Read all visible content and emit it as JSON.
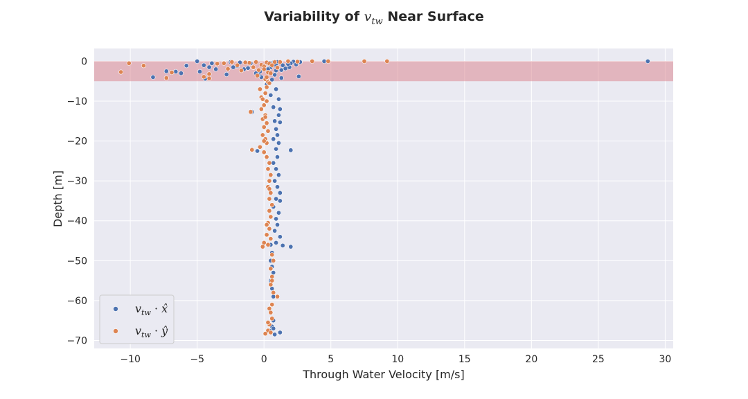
{
  "chart_data": {
    "type": "scatter",
    "title_prefix": "Variability of ",
    "title_var": "v",
    "title_sub": "tw",
    "title_suffix": " Near Surface",
    "xlabel": "Through Water Velocity [m/s]",
    "ylabel": "Depth [m]",
    "xlim": [
      -12.7,
      30.6
    ],
    "ylim": [
      -72,
      3.2
    ],
    "xticks": [
      -10,
      -5,
      0,
      5,
      10,
      15,
      20,
      25,
      30
    ],
    "yticks": [
      0,
      -10,
      -20,
      -30,
      -40,
      -50,
      -60,
      -70
    ],
    "xtick_labels": [
      "−10",
      "−5",
      "0",
      "5",
      "10",
      "15",
      "20",
      "25",
      "30"
    ],
    "ytick_labels": [
      "0",
      "−10",
      "−20",
      "−30",
      "−40",
      "−50",
      "−60",
      "−70"
    ],
    "grid": true,
    "legend_position": "lower-left",
    "highlight_band": {
      "y_from": -5,
      "y_to": 0,
      "color": "#d9808a"
    },
    "colors": {
      "background": "#eaeaf2",
      "grid": "#ffffff",
      "x_series": "#4c72b0",
      "y_series": "#dd8452"
    },
    "series": [
      {
        "name_v": "v",
        "name_sub": "tw",
        "name_dot": " · ",
        "name_comp": "x̂",
        "color": "#4c72b0",
        "points": [
          [
            28.7,
            0.0
          ],
          [
            4.5,
            0.0
          ],
          [
            2.7,
            -0.2
          ],
          [
            2.2,
            -0.1
          ],
          [
            2.4,
            -0.8
          ],
          [
            1.9,
            -1.5
          ],
          [
            2.6,
            -3.8
          ],
          [
            2.0,
            -0.5
          ],
          [
            1.3,
            -2.2
          ],
          [
            1.6,
            -1.8
          ],
          [
            -5.0,
            0.0
          ],
          [
            -4.5,
            -1.0
          ],
          [
            -4.1,
            -1.5
          ],
          [
            -4.8,
            -2.6
          ],
          [
            -3.0,
            -0.4
          ],
          [
            -2.5,
            -0.2
          ],
          [
            -2.0,
            -1.2
          ],
          [
            -1.5,
            -2.0
          ],
          [
            -1.0,
            -0.5
          ],
          [
            -0.6,
            -3.0
          ],
          [
            -6.2,
            -3.0
          ],
          [
            -6.6,
            -2.6
          ],
          [
            -7.3,
            -2.5
          ],
          [
            -8.3,
            -4.0
          ],
          [
            -5.8,
            -1.1
          ],
          [
            -3.6,
            -2.0
          ],
          [
            -1.8,
            -0.3
          ],
          [
            -1.2,
            -1.7
          ],
          [
            -0.3,
            -2.6
          ],
          [
            0.5,
            -1.5
          ],
          [
            0.9,
            -2.3
          ],
          [
            0.8,
            -3.4
          ],
          [
            -0.2,
            -4.0
          ],
          [
            0.4,
            -0.8
          ],
          [
            1.0,
            -0.2
          ],
          [
            -2.8,
            -3.3
          ],
          [
            -2.3,
            -1.5
          ],
          [
            -3.9,
            -0.5
          ],
          [
            -4.4,
            -4.4
          ],
          [
            0.2,
            -5.8
          ],
          [
            0.9,
            -7.0
          ],
          [
            0.5,
            -8.5
          ],
          [
            1.1,
            -9.5
          ],
          [
            0.7,
            -11.5
          ],
          [
            1.2,
            -12.0
          ],
          [
            -0.9,
            -12.7
          ],
          [
            1.1,
            -13.5
          ],
          [
            0.8,
            -15.0
          ],
          [
            1.2,
            -15.3
          ],
          [
            0.9,
            -17.0
          ],
          [
            1.0,
            -18.5
          ],
          [
            0.7,
            -19.5
          ],
          [
            1.1,
            -20.5
          ],
          [
            0.9,
            -22.0
          ],
          [
            2.0,
            -22.3
          ],
          [
            -0.5,
            -22.5
          ],
          [
            1.0,
            -24.0
          ],
          [
            0.7,
            -25.5
          ],
          [
            0.9,
            -27.0
          ],
          [
            1.1,
            -28.5
          ],
          [
            0.8,
            -30.0
          ],
          [
            1.0,
            -31.5
          ],
          [
            1.2,
            -33.0
          ],
          [
            0.9,
            -34.5
          ],
          [
            1.2,
            -35.0
          ],
          [
            0.7,
            -36.5
          ],
          [
            1.1,
            -38.0
          ],
          [
            0.9,
            -39.5
          ],
          [
            1.0,
            -41.0
          ],
          [
            0.8,
            -42.5
          ],
          [
            1.2,
            -44.0
          ],
          [
            0.9,
            -45.5
          ],
          [
            1.4,
            -46.2
          ],
          [
            2.0,
            -46.5
          ],
          [
            0.5,
            -46.0
          ],
          [
            0.6,
            -48.0
          ],
          [
            0.5,
            -50.0
          ],
          [
            0.6,
            -51.5
          ],
          [
            0.7,
            -53.0
          ],
          [
            0.5,
            -55.0
          ],
          [
            0.6,
            -57.0
          ],
          [
            0.7,
            -59.0
          ],
          [
            0.6,
            -61.0
          ],
          [
            0.5,
            -63.0
          ],
          [
            0.7,
            -65.0
          ],
          [
            0.6,
            -66.5
          ],
          [
            1.2,
            -68.0
          ],
          [
            0.8,
            -68.5
          ],
          [
            0.4,
            -67.5
          ],
          [
            0.7,
            -67.0
          ],
          [
            0.9,
            -1.0
          ],
          [
            0.3,
            -2.0
          ],
          [
            1.4,
            -1.0
          ],
          [
            1.8,
            -0.7
          ],
          [
            -0.8,
            -1.6
          ],
          [
            0.6,
            -4.6
          ],
          [
            1.3,
            -4.2
          ],
          [
            -0.4,
            -3.5
          ],
          [
            0.4,
            -0.4
          ],
          [
            0.7,
            -0.3
          ]
        ]
      },
      {
        "name_v": "v",
        "name_sub": "tw",
        "name_dot": " · ",
        "name_comp": "ŷ",
        "color": "#dd8452",
        "points": [
          [
            9.2,
            0.0
          ],
          [
            7.5,
            0.0
          ],
          [
            4.8,
            0.0
          ],
          [
            3.6,
            0.0
          ],
          [
            2.5,
            -0.1
          ],
          [
            1.8,
            0.0
          ],
          [
            1.2,
            -0.2
          ],
          [
            -10.1,
            -0.5
          ],
          [
            -10.7,
            -2.7
          ],
          [
            -9.0,
            -1.1
          ],
          [
            -7.3,
            -4.2
          ],
          [
            -6.9,
            -2.8
          ],
          [
            -4.5,
            -3.9
          ],
          [
            -4.1,
            -3.2
          ],
          [
            -4.1,
            -4.3
          ],
          [
            -3.5,
            -0.6
          ],
          [
            -3.0,
            -0.5
          ],
          [
            -2.7,
            -1.9
          ],
          [
            -2.0,
            -1.0
          ],
          [
            -1.7,
            -2.3
          ],
          [
            -1.1,
            -0.4
          ],
          [
            -0.8,
            -1.5
          ],
          [
            -0.6,
            -0.2
          ],
          [
            -0.4,
            -2.2
          ],
          [
            -0.2,
            -0.9
          ],
          [
            0.0,
            -1.3
          ],
          [
            0.2,
            -0.3
          ],
          [
            0.3,
            -2.8
          ],
          [
            0.4,
            -0.6
          ],
          [
            0.6,
            -1.0
          ],
          [
            0.8,
            -0.2
          ],
          [
            1.0,
            -1.6
          ],
          [
            -1.4,
            -0.3
          ],
          [
            -2.4,
            -0.2
          ],
          [
            -0.5,
            -3.6
          ],
          [
            0.1,
            -4.5
          ],
          [
            0.3,
            -5.2
          ],
          [
            0.5,
            -3.0
          ],
          [
            0.2,
            -4.0
          ],
          [
            0.0,
            -2.0
          ],
          [
            -0.3,
            -7.0
          ],
          [
            0.1,
            -8.0
          ],
          [
            -0.2,
            -9.0
          ],
          [
            0.2,
            -10.0
          ],
          [
            0.0,
            -11.0
          ],
          [
            -0.2,
            -12.0
          ],
          [
            -1.0,
            -12.7
          ],
          [
            0.1,
            -13.5
          ],
          [
            -0.1,
            -14.5
          ],
          [
            0.2,
            -15.5
          ],
          [
            0.0,
            -16.5
          ],
          [
            0.3,
            -17.5
          ],
          [
            -0.1,
            -18.5
          ],
          [
            0.1,
            -19.5
          ],
          [
            0.2,
            -20.5
          ],
          [
            -0.3,
            -21.5
          ],
          [
            -0.9,
            -22.2
          ],
          [
            0.0,
            -22.8
          ],
          [
            0.2,
            -24.0
          ],
          [
            0.4,
            -25.5
          ],
          [
            0.3,
            -27.0
          ],
          [
            0.5,
            -28.5
          ],
          [
            0.4,
            -30.0
          ],
          [
            0.3,
            -31.5
          ],
          [
            0.5,
            -33.0
          ],
          [
            0.4,
            -34.5
          ],
          [
            0.6,
            -36.0
          ],
          [
            0.4,
            -37.5
          ],
          [
            0.5,
            -39.0
          ],
          [
            0.3,
            -40.5
          ],
          [
            0.4,
            -42.0
          ],
          [
            0.2,
            -43.5
          ],
          [
            0.5,
            -44.5
          ],
          [
            0.0,
            -45.5
          ],
          [
            -0.1,
            -46.5
          ],
          [
            0.3,
            -46.0
          ],
          [
            0.6,
            -48.5
          ],
          [
            0.7,
            -50.0
          ],
          [
            0.5,
            -52.0
          ],
          [
            0.6,
            -54.0
          ],
          [
            0.5,
            -56.0
          ],
          [
            0.7,
            -58.0
          ],
          [
            1.0,
            -59.0
          ],
          [
            0.6,
            -61.0
          ],
          [
            0.5,
            -63.0
          ],
          [
            0.6,
            -64.5
          ],
          [
            0.4,
            -66.0
          ],
          [
            0.3,
            -67.5
          ],
          [
            0.1,
            -68.3
          ],
          [
            0.5,
            -68.0
          ],
          [
            0.4,
            -5.5
          ],
          [
            0.2,
            -6.5
          ],
          [
            -0.1,
            -9.5
          ],
          [
            0.1,
            -14.0
          ],
          [
            0.0,
            -20.0
          ],
          [
            0.4,
            -32.0
          ],
          [
            0.2,
            -41.0
          ],
          [
            0.6,
            -55.0
          ],
          [
            0.4,
            -62.0
          ],
          [
            0.3,
            -65.5
          ]
        ]
      }
    ]
  }
}
